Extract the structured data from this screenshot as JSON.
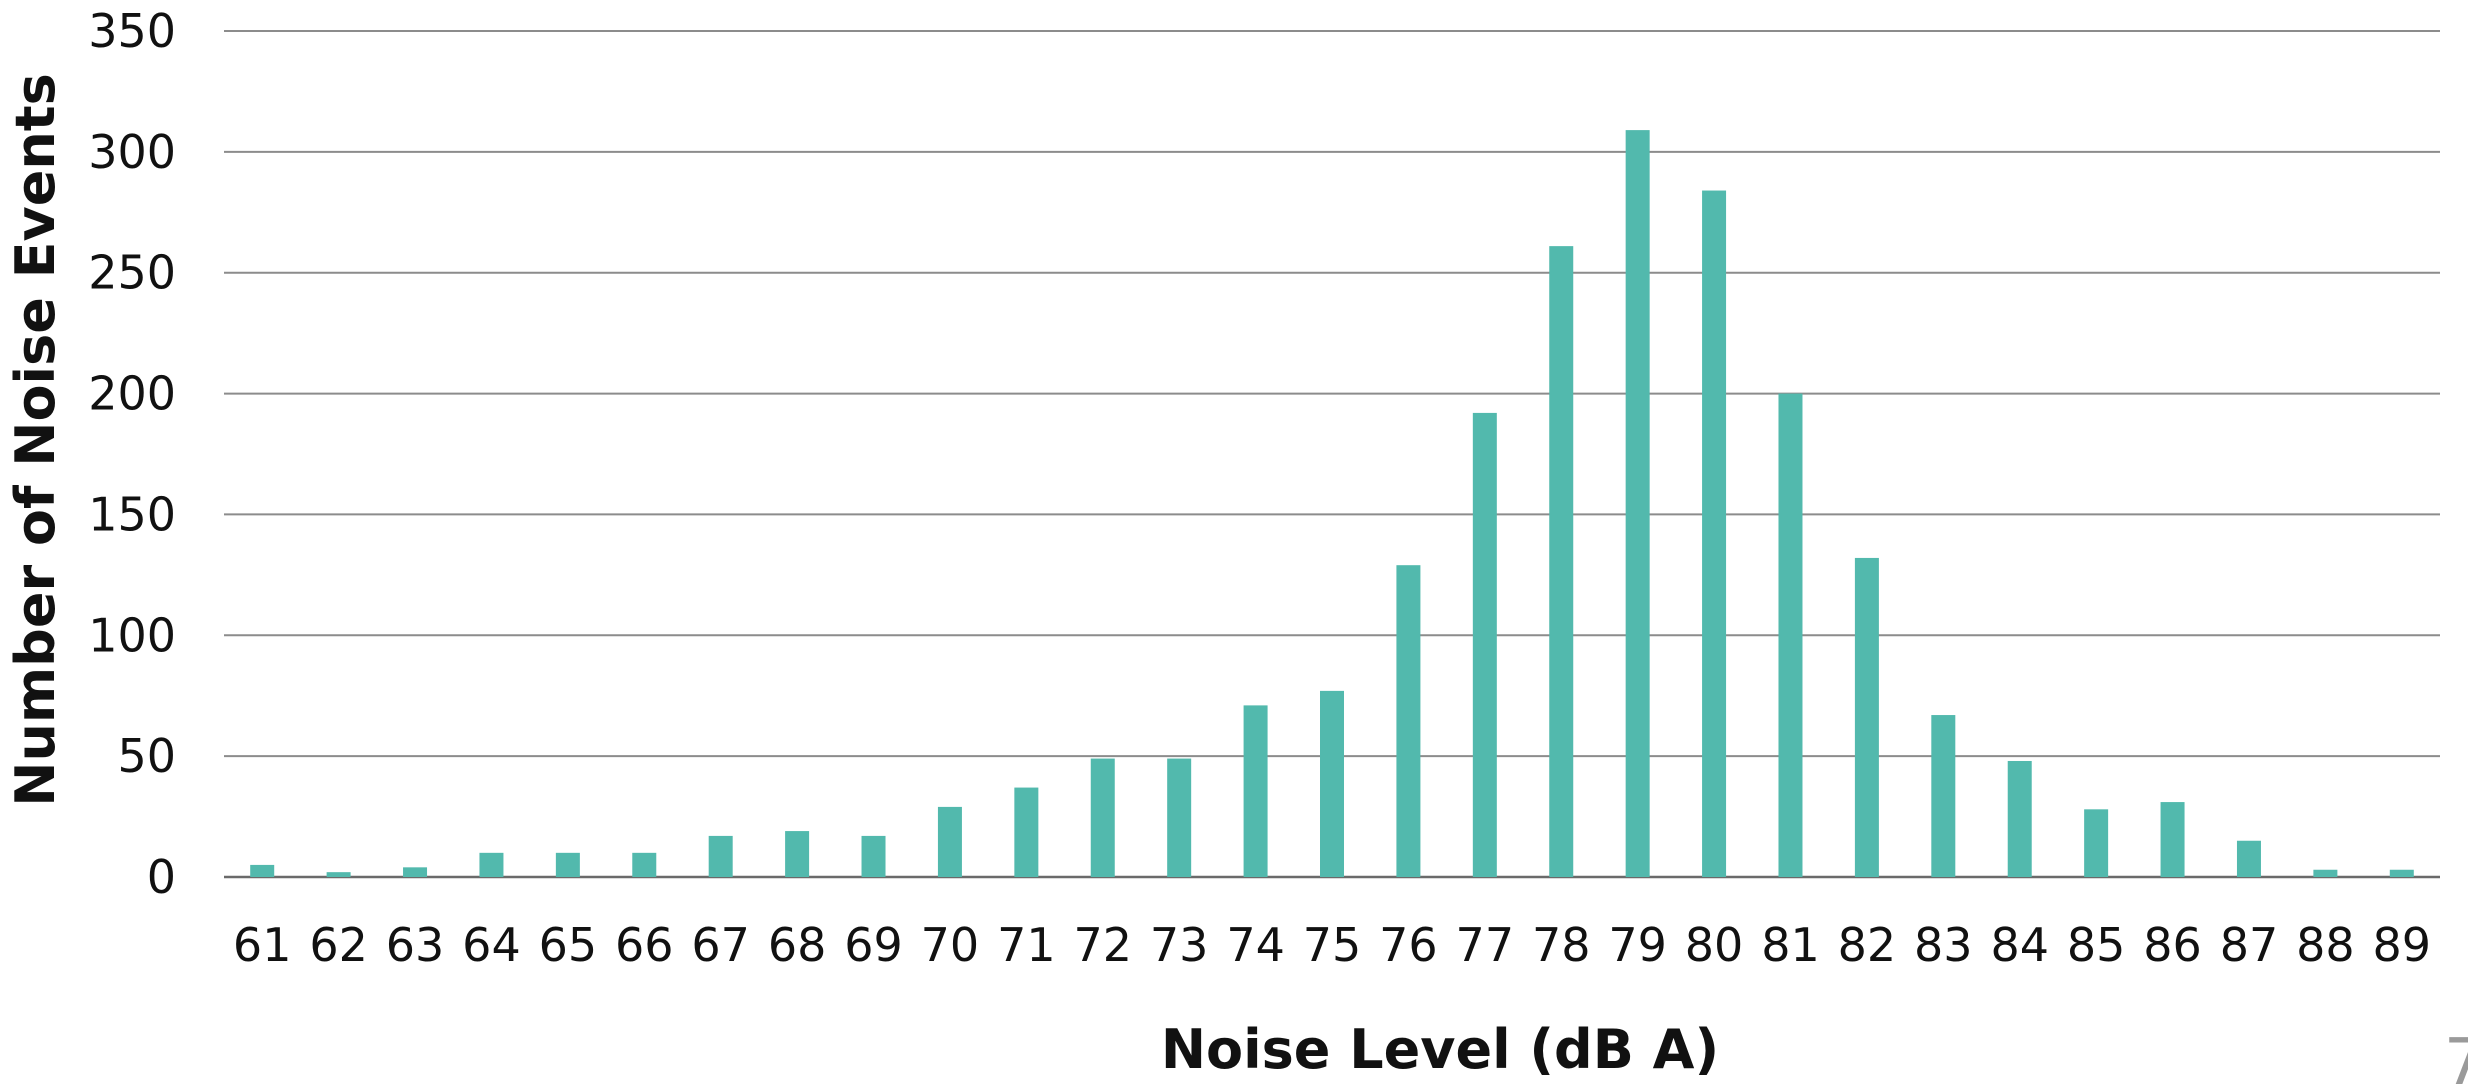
{
  "page_number": "7",
  "chart_data": {
    "type": "bar",
    "title": "",
    "xlabel": "Noise Level (dB A)",
    "ylabel": "Number of Noise Events",
    "ylim": [
      0,
      350
    ],
    "yticks": [
      0,
      50,
      100,
      150,
      200,
      250,
      300,
      350
    ],
    "grid": true,
    "legend": "none",
    "bar_color": "#52b9ad",
    "categories": [
      "61",
      "62",
      "63",
      "64",
      "65",
      "66",
      "67",
      "68",
      "69",
      "70",
      "71",
      "72",
      "73",
      "74",
      "75",
      "76",
      "77",
      "78",
      "79",
      "80",
      "81",
      "82",
      "83",
      "84",
      "85",
      "86",
      "87",
      "88",
      "89"
    ],
    "values": [
      5,
      2,
      4,
      10,
      10,
      10,
      17,
      19,
      17,
      29,
      37,
      49,
      49,
      71,
      77,
      129,
      192,
      261,
      309,
      284,
      200,
      132,
      67,
      48,
      28,
      31,
      15,
      3,
      3
    ]
  }
}
